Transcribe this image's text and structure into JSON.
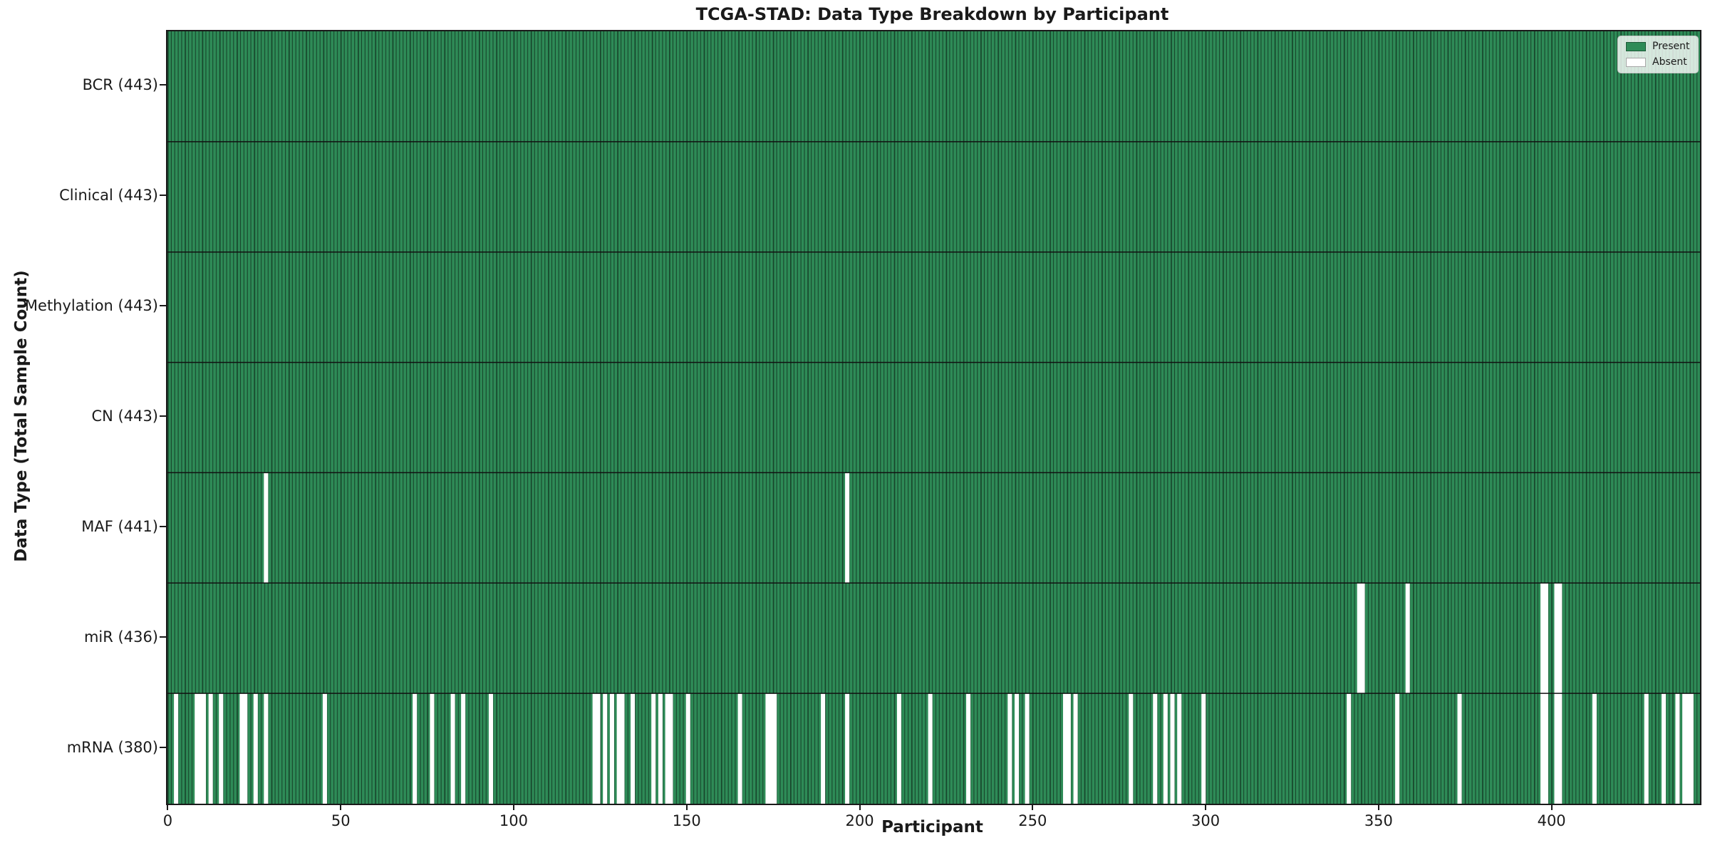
{
  "figure": {
    "background": "#ffffff",
    "text_color": "#1a1a1a"
  },
  "chart_data": {
    "type": "heatmap",
    "title": "TCGA-STAD: Data Type Breakdown by Participant",
    "xlabel": "Participant",
    "ylabel": "Data Type (Total Sample Count)",
    "n_participants": 443,
    "xlim": [
      -0.5,
      443.5
    ],
    "x_ticks": [
      0,
      50,
      100,
      150,
      200,
      250,
      300,
      350,
      400
    ],
    "grid": false,
    "legend_position": "upper right",
    "legend": [
      {
        "label": "Present",
        "color": "#2e8b57"
      },
      {
        "label": "Absent",
        "color": "#ffffff"
      }
    ],
    "colors": {
      "present": "#2e8b57",
      "absent": "#ffffff",
      "bar_edge": "#17452b",
      "divider": "#111111"
    },
    "rows": [
      {
        "name": "BCR",
        "total": 443,
        "tick_label": "BCR (443)",
        "absent": []
      },
      {
        "name": "Clinical",
        "total": 443,
        "tick_label": "Clinical (443)",
        "absent": []
      },
      {
        "name": "Methylation",
        "total": 443,
        "tick_label": "Methylation (443)",
        "absent": []
      },
      {
        "name": "CN",
        "total": 443,
        "tick_label": "CN (443)",
        "absent": []
      },
      {
        "name": "MAF",
        "total": 441,
        "tick_label": "MAF (441)",
        "absent": [
          28,
          196
        ]
      },
      {
        "name": "miR",
        "total": 436,
        "tick_label": "miR (436)",
        "absent": [
          344,
          345,
          358,
          397,
          398,
          401,
          402
        ]
      },
      {
        "name": "mRNA",
        "total": 380,
        "tick_label": "mRNA (380)",
        "absent": [
          2,
          8,
          9,
          10,
          12,
          15,
          21,
          22,
          25,
          28,
          45,
          71,
          76,
          82,
          85,
          93,
          123,
          124,
          126,
          128,
          130,
          131,
          134,
          140,
          142,
          144,
          145,
          150,
          165,
          173,
          174,
          175,
          189,
          196,
          211,
          220,
          231,
          243,
          245,
          248,
          259,
          260,
          262,
          278,
          285,
          288,
          290,
          292,
          299,
          341,
          355,
          373,
          397,
          398,
          401,
          402,
          412,
          427,
          432,
          436,
          438,
          439,
          440
        ]
      }
    ]
  }
}
